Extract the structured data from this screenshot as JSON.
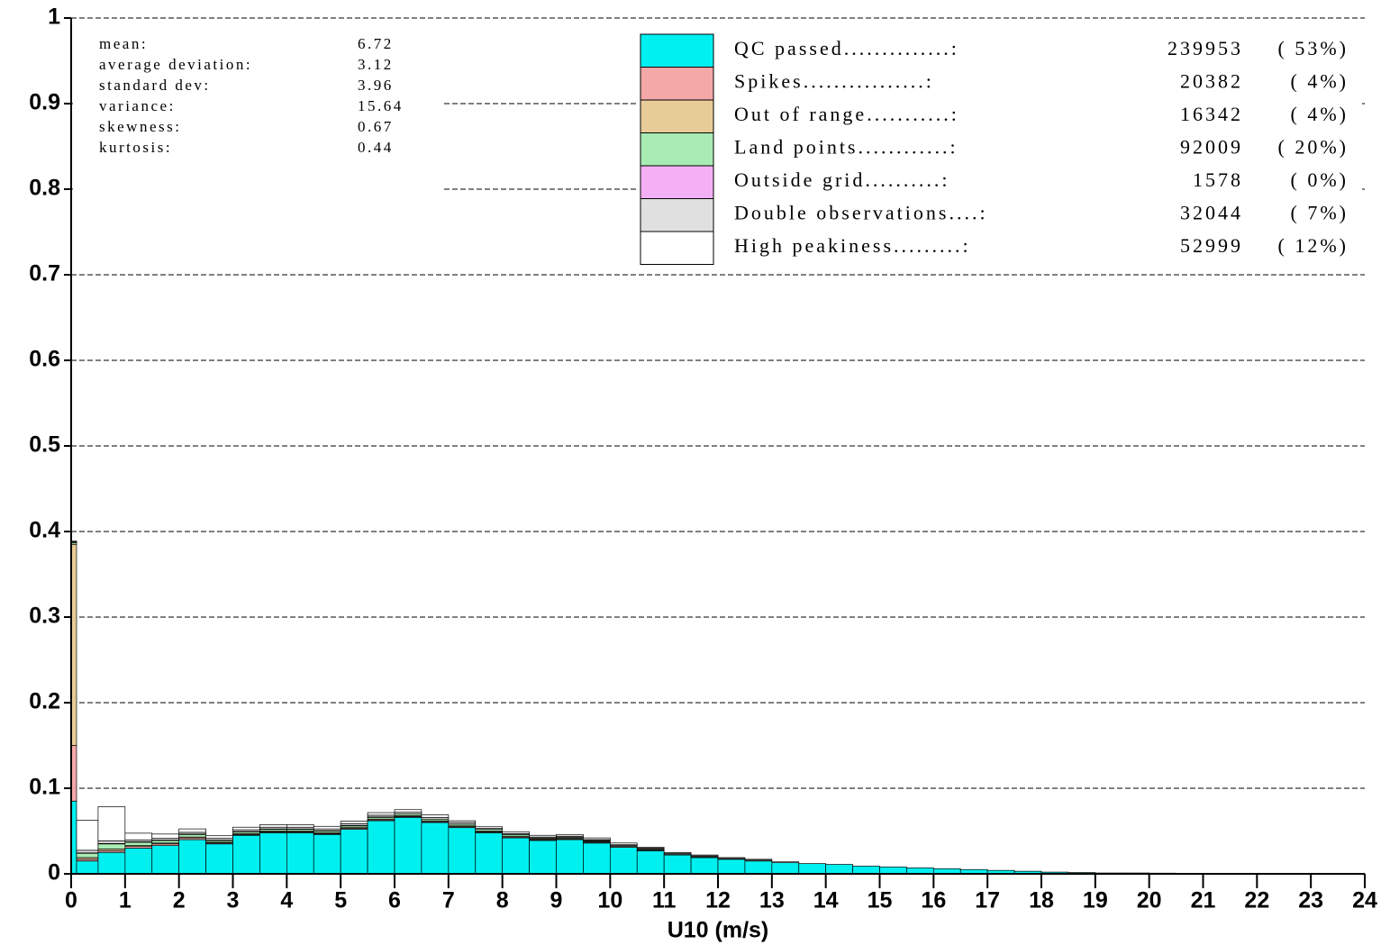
{
  "chart_data": {
    "type": "histogram",
    "x_label": "U10 (m/s)",
    "bins": [
      0,
      0.1,
      0.5,
      1,
      1.5,
      2,
      2.5,
      3,
      3.5,
      4,
      4.5,
      5,
      5.5,
      6,
      6.5,
      7,
      7.5,
      8,
      8.5,
      9,
      9.5,
      10,
      10.5,
      11,
      11.5,
      12,
      12.5,
      13,
      13.5,
      14,
      14.5,
      15,
      15.5,
      16,
      16.5,
      17,
      17.5,
      18,
      18.5,
      19,
      19.5,
      20,
      20.5,
      21,
      21.5,
      22,
      22.5,
      23,
      23.5,
      24
    ],
    "xlim": [
      0,
      24
    ],
    "xticks": [
      0,
      1,
      2,
      3,
      4,
      5,
      6,
      7,
      8,
      9,
      10,
      11,
      12,
      13,
      14,
      15,
      16,
      17,
      18,
      19,
      20,
      21,
      22,
      23,
      24
    ],
    "ylim": [
      0,
      1
    ],
    "yticks": [
      0,
      0.1,
      0.2,
      0.3,
      0.4,
      0.5,
      0.6,
      0.7,
      0.8,
      0.9,
      1
    ],
    "grid": true,
    "stacked": true,
    "stats": [
      {
        "label": "mean:",
        "value": 6.72
      },
      {
        "label": "average deviation:",
        "value": 3.12
      },
      {
        "label": "standard dev:",
        "value": 3.96
      },
      {
        "label": "variance:",
        "value": 15.64
      },
      {
        "label": "skewness:",
        "value": 0.67
      },
      {
        "label": "kurtosis:",
        "value": 0.44
      }
    ],
    "series": [
      {
        "name": "QC passed",
        "leader": "..............:",
        "count": 239953,
        "percent_label": "( 53%)",
        "color": "#00f0f0",
        "values": [
          0.085,
          0.015,
          0.025,
          0.03,
          0.033,
          0.04,
          0.035,
          0.045,
          0.048,
          0.048,
          0.046,
          0.052,
          0.062,
          0.066,
          0.06,
          0.054,
          0.048,
          0.042,
          0.039,
          0.04,
          0.036,
          0.031,
          0.027,
          0.022,
          0.019,
          0.017,
          0.015,
          0.013,
          0.012,
          0.011,
          0.009,
          0.008,
          0.007,
          0.006,
          0.005,
          0.004,
          0.003,
          0.002,
          0.0015,
          0.001,
          0.001,
          0.0008,
          0.0006,
          0.0004,
          0.0003,
          0.0002,
          0.0002,
          0.0001,
          0.0001
        ]
      },
      {
        "name": "Spikes",
        "leader": "................:",
        "count": 20382,
        "percent_label": "(  4%)",
        "color": "#f4a8a8",
        "values": [
          0.065,
          0.002,
          0.002,
          0.002,
          0.002,
          0.002,
          0.001,
          0.001,
          0.001,
          0.001,
          0.001,
          0.001,
          0.001,
          0.001,
          0.001,
          0.001,
          0.001,
          0.001,
          0.001,
          0.001,
          0.001,
          0.001,
          0.001,
          0,
          0,
          0,
          0,
          0,
          0,
          0,
          0,
          0,
          0,
          0,
          0,
          0,
          0,
          0,
          0,
          0,
          0,
          0,
          0,
          0,
          0,
          0,
          0,
          0,
          0
        ]
      },
      {
        "name": "Out of range",
        "leader": "...........:",
        "count": 16342,
        "percent_label": "(  4%)",
        "color": "#e8cc98",
        "values": [
          0.235,
          0.002,
          0.002,
          0.001,
          0.001,
          0.001,
          0.001,
          0.001,
          0.001,
          0.001,
          0.001,
          0.001,
          0.001,
          0.001,
          0.001,
          0.001,
          0.001,
          0.001,
          0.001,
          0.001,
          0.001,
          0,
          0,
          0,
          0,
          0,
          0,
          0,
          0,
          0,
          0,
          0,
          0,
          0,
          0,
          0,
          0,
          0,
          0,
          0,
          0,
          0,
          0,
          0,
          0,
          0,
          0,
          0,
          0
        ]
      },
      {
        "name": "Land points",
        "leader": "............:",
        "count": 92009,
        "percent_label": "( 20%)",
        "color": "#a8ecb4",
        "values": [
          0.002,
          0.005,
          0.006,
          0.004,
          0.003,
          0.003,
          0.002,
          0.002,
          0.002,
          0.002,
          0.002,
          0.002,
          0.002,
          0.002,
          0.002,
          0.002,
          0.002,
          0.002,
          0.001,
          0.001,
          0.001,
          0.001,
          0.001,
          0.001,
          0.001,
          0.001,
          0.001,
          0,
          0,
          0,
          0,
          0,
          0,
          0,
          0,
          0,
          0,
          0,
          0,
          0,
          0,
          0,
          0,
          0,
          0,
          0,
          0,
          0,
          0
        ]
      },
      {
        "name": "Outside grid",
        "leader": "..........:",
        "count": 1578,
        "percent_label": "(  0%)",
        "color": "#f4b0f4",
        "values": [
          0,
          0.0005,
          0.0005,
          0.0005,
          0.0005,
          0.0005,
          0.0005,
          0.0005,
          0.0005,
          0.0005,
          0.0005,
          0.0005,
          0.0005,
          0,
          0,
          0,
          0,
          0,
          0,
          0,
          0,
          0,
          0,
          0,
          0,
          0,
          0,
          0,
          0,
          0,
          0,
          0,
          0,
          0,
          0,
          0,
          0,
          0,
          0,
          0,
          0,
          0,
          0,
          0,
          0,
          0,
          0,
          0,
          0
        ]
      },
      {
        "name": "Double observations",
        "leader": "....:",
        "count": 32044,
        "percent_label": "(  7%)",
        "color": "#e0e0e0",
        "values": [
          0.001,
          0.003,
          0.003,
          0.002,
          0.002,
          0.002,
          0.002,
          0.002,
          0.002,
          0.002,
          0.002,
          0.002,
          0.002,
          0.002,
          0.002,
          0.002,
          0.001,
          0.001,
          0.001,
          0.001,
          0.001,
          0.001,
          0.001,
          0.001,
          0.001,
          0,
          0,
          0,
          0,
          0,
          0,
          0,
          0,
          0,
          0,
          0,
          0,
          0,
          0,
          0,
          0,
          0,
          0,
          0,
          0,
          0,
          0,
          0,
          0
        ]
      },
      {
        "name": "High peakiness",
        "leader": ".........:",
        "count": 52999,
        "percent_label": "( 12%)",
        "color": "#ffffff",
        "values": [
          0.001,
          0.035,
          0.04,
          0.008,
          0.005,
          0.004,
          0.003,
          0.003,
          0.003,
          0.003,
          0.003,
          0.003,
          0.003,
          0.003,
          0.003,
          0.002,
          0.002,
          0.002,
          0.002,
          0.002,
          0.002,
          0.002,
          0.001,
          0.001,
          0.001,
          0.001,
          0.001,
          0.001,
          0,
          0,
          0,
          0,
          0,
          0,
          0,
          0,
          0,
          0,
          0,
          0,
          0,
          0,
          0,
          0,
          0,
          0,
          0,
          0,
          0
        ]
      }
    ]
  }
}
